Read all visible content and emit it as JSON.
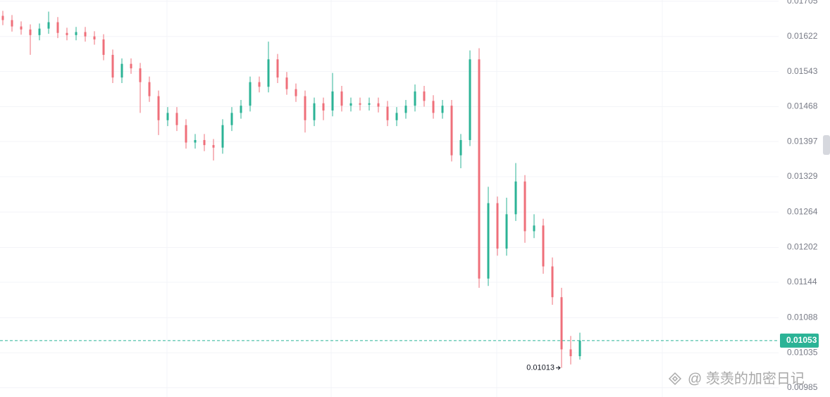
{
  "chart_data": {
    "type": "candlestick",
    "log_scale": true,
    "grid": true,
    "up_color": "#2bb396",
    "down_color": "#ef6f7a",
    "ylim": [
      0.00972,
      0.01708
    ],
    "yticks": [
      0.01705,
      0.01622,
      0.01543,
      0.01468,
      0.01397,
      0.01329,
      0.01264,
      0.01202,
      0.01144,
      0.01088,
      0.01035,
      0.00985
    ],
    "open": [
      0.0167,
      0.0166,
      0.01645,
      0.01638,
      0.01625,
      0.0164,
      0.01655,
      0.0163,
      0.01625,
      0.01632,
      0.01622,
      0.01615,
      0.0158,
      0.0153,
      0.0156,
      0.0155,
      0.0152,
      0.0149,
      0.0144,
      0.01455,
      0.0143,
      0.01395,
      0.014,
      0.0139,
      0.01385,
      0.0143,
      0.01455,
      0.0147,
      0.0152,
      0.0151,
      0.0157,
      0.0153,
      0.01505,
      0.0149,
      0.0144,
      0.01475,
      0.0146,
      0.015,
      0.0147,
      0.01475,
      0.01472,
      0.01475,
      0.01468,
      0.0144,
      0.01455,
      0.0147,
      0.015,
      0.0148,
      0.01455,
      0.0147,
      0.0137,
      0.014,
      0.0157,
      0.0115,
      0.0128,
      0.012,
      0.0126,
      0.0132,
      0.0123,
      0.0124,
      0.0117,
      0.0112,
      0.0104,
      0.0103
    ],
    "high": [
      0.01682,
      0.01672,
      0.01657,
      0.0165,
      0.01652,
      0.0168,
      0.01667,
      0.01642,
      0.01644,
      0.01644,
      0.01634,
      0.01627,
      0.01592,
      0.01572,
      0.01572,
      0.01562,
      0.01532,
      0.01502,
      0.01467,
      0.01467,
      0.01442,
      0.01412,
      0.01412,
      0.01402,
      0.01442,
      0.01467,
      0.01482,
      0.01532,
      0.01532,
      0.0161,
      0.01582,
      0.01542,
      0.01517,
      0.01502,
      0.01487,
      0.01487,
      0.0154,
      0.01512,
      0.01487,
      0.01487,
      0.01487,
      0.01487,
      0.0148,
      0.01467,
      0.01482,
      0.01515,
      0.01512,
      0.01492,
      0.01482,
      0.01482,
      0.01412,
      0.0159,
      0.01595,
      0.0131,
      0.01292,
      0.0129,
      0.01355,
      0.01332,
      0.0126,
      0.01252,
      0.01185,
      0.01135,
      0.0106,
      0.01065
    ],
    "low": [
      0.01648,
      0.01633,
      0.01626,
      0.0158,
      0.01613,
      0.01628,
      0.01618,
      0.01613,
      0.01613,
      0.0161,
      0.01603,
      0.01568,
      0.01518,
      0.01518,
      0.01538,
      0.01455,
      0.01478,
      0.0141,
      0.01428,
      0.01418,
      0.01383,
      0.01383,
      0.01378,
      0.0136,
      0.01373,
      0.01418,
      0.01443,
      0.01458,
      0.01498,
      0.01498,
      0.01518,
      0.01493,
      0.01478,
      0.01415,
      0.01428,
      0.0144,
      0.01448,
      0.01458,
      0.01458,
      0.0146,
      0.0146,
      0.01456,
      0.01428,
      0.01428,
      0.01443,
      0.01458,
      0.01468,
      0.01443,
      0.01443,
      0.01358,
      0.01345,
      0.01388,
      0.01135,
      0.01138,
      0.01188,
      0.01188,
      0.01248,
      0.0121,
      0.01218,
      0.01158,
      0.01108,
      0.01013,
      0.01018,
      0.01025
    ],
    "close": [
      0.0166,
      0.01645,
      0.01638,
      0.01625,
      0.0164,
      0.01655,
      0.0163,
      0.01625,
      0.01632,
      0.01622,
      0.01615,
      0.0158,
      0.0153,
      0.0156,
      0.0155,
      0.0152,
      0.0149,
      0.0144,
      0.01455,
      0.0143,
      0.01395,
      0.014,
      0.0139,
      0.01385,
      0.0143,
      0.01455,
      0.0147,
      0.0152,
      0.0151,
      0.0157,
      0.0153,
      0.01505,
      0.0149,
      0.0144,
      0.01475,
      0.0146,
      0.015,
      0.0147,
      0.01475,
      0.01472,
      0.01475,
      0.01468,
      0.0144,
      0.01455,
      0.0147,
      0.015,
      0.0148,
      0.01455,
      0.0147,
      0.0137,
      0.014,
      0.0157,
      0.0115,
      0.0128,
      0.012,
      0.0126,
      0.0132,
      0.0123,
      0.0124,
      0.0117,
      0.0112,
      0.0104,
      0.0103,
      0.01053
    ],
    "last_price": {
      "value": 0.01053,
      "label": "0.01053"
    },
    "low_marker": {
      "value": 0.01013,
      "label": "0.01013"
    },
    "watermark": "@ 羡羡的加密日记"
  }
}
